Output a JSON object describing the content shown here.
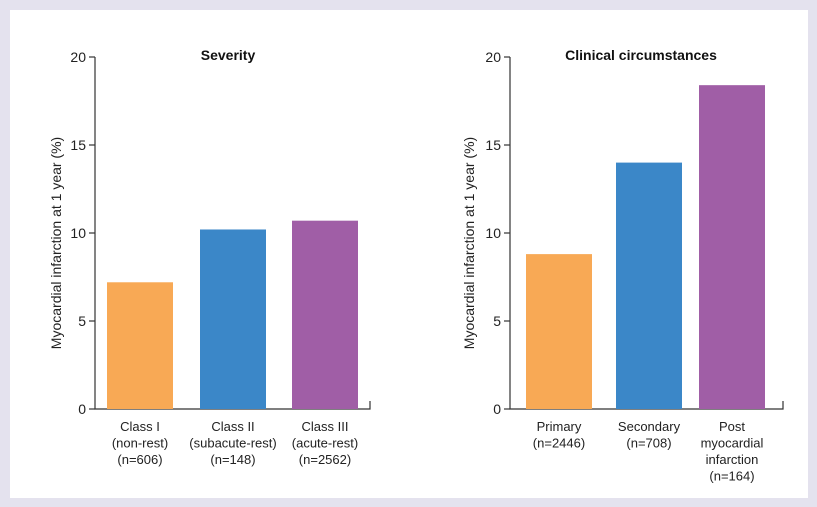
{
  "chart_data": [
    {
      "type": "bar",
      "title": "Severity",
      "ylabel": "Myocardial infarction at 1 year (%)",
      "xlabel": "",
      "ylim": [
        0,
        20
      ],
      "yticks": [
        0,
        5,
        10,
        15,
        20
      ],
      "categories": [
        [
          "Class I",
          "(non-rest)",
          "(n=606)"
        ],
        [
          "Class II",
          "(subacute-rest)",
          "(n=148)"
        ],
        [
          "Class III",
          "(acute-rest)",
          "(n=2562)"
        ]
      ],
      "values": [
        7.2,
        10.2,
        10.7
      ],
      "colors": [
        "#f8a955",
        "#3b87c8",
        "#a05ea6"
      ],
      "grid": false,
      "legend": "none"
    },
    {
      "type": "bar",
      "title": "Clinical circumstances",
      "ylabel": "Myocardial infarction at 1 year (%)",
      "xlabel": "",
      "ylim": [
        0,
        20
      ],
      "yticks": [
        0,
        5,
        10,
        15,
        20
      ],
      "categories": [
        [
          "Primary",
          "(n=2446)"
        ],
        [
          "Secondary",
          "(n=708)"
        ],
        [
          "Post",
          "myocardial",
          "infarction",
          "(n=164)"
        ]
      ],
      "values": [
        8.8,
        14.0,
        18.4
      ],
      "colors": [
        "#f8a955",
        "#3b87c8",
        "#a05ea6"
      ],
      "grid": false,
      "legend": "none"
    }
  ]
}
